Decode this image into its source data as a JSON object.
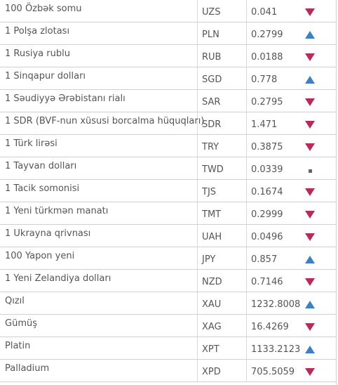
{
  "colors": {
    "down": "#b8295e",
    "up": "#3a82c4",
    "flat": "#666666",
    "border": "#cfcfcf"
  },
  "rows": [
    {
      "name": "100 Özbək somu",
      "code": "UZS",
      "value": "0.041",
      "trend": "down"
    },
    {
      "name": "1 Polşa zlotası",
      "code": "PLN",
      "value": "0.2799",
      "trend": "up"
    },
    {
      "name": "1 Rusiya rublu",
      "code": "RUB",
      "value": "0.0188",
      "trend": "down"
    },
    {
      "name": "1 Sinqapur dolları",
      "code": "SGD",
      "value": "0.778",
      "trend": "up"
    },
    {
      "name": "1 Səudiyyə Ərəbistanı rialı",
      "code": "SAR",
      "value": "0.2795",
      "trend": "down"
    },
    {
      "name": "1 SDR (BVF-nun xüsusi borcalma hüquqları)",
      "code": "SDR",
      "value": "1.471",
      "trend": "down"
    },
    {
      "name": "1 Türk lirəsi",
      "code": "TRY",
      "value": "0.3875",
      "trend": "down"
    },
    {
      "name": "1 Tayvan dolları",
      "code": "TWD",
      "value": "0.0339",
      "trend": "flat"
    },
    {
      "name": "1 Tacik somonisi",
      "code": "TJS",
      "value": "0.1674",
      "trend": "down"
    },
    {
      "name": "1 Yeni türkmən manatı",
      "code": "TMT",
      "value": "0.2999",
      "trend": "down"
    },
    {
      "name": "1 Ukrayna qrivnası",
      "code": "UAH",
      "value": "0.0496",
      "trend": "down"
    },
    {
      "name": "100 Yapon yeni",
      "code": "JPY",
      "value": "0.857",
      "trend": "up"
    },
    {
      "name": "1 Yeni Zelandiya dolları",
      "code": "NZD",
      "value": "0.7146",
      "trend": "down"
    },
    {
      "name": "Qızıl",
      "code": "XAU",
      "value": "1232.8008",
      "trend": "up"
    },
    {
      "name": "Gümüş",
      "code": "XAG",
      "value": "16.4269",
      "trend": "down"
    },
    {
      "name": "Platin",
      "code": "XPT",
      "value": "1133.2123",
      "trend": "up"
    },
    {
      "name": "Palladium",
      "code": "XPD",
      "value": "705.5059",
      "trend": "down"
    }
  ]
}
